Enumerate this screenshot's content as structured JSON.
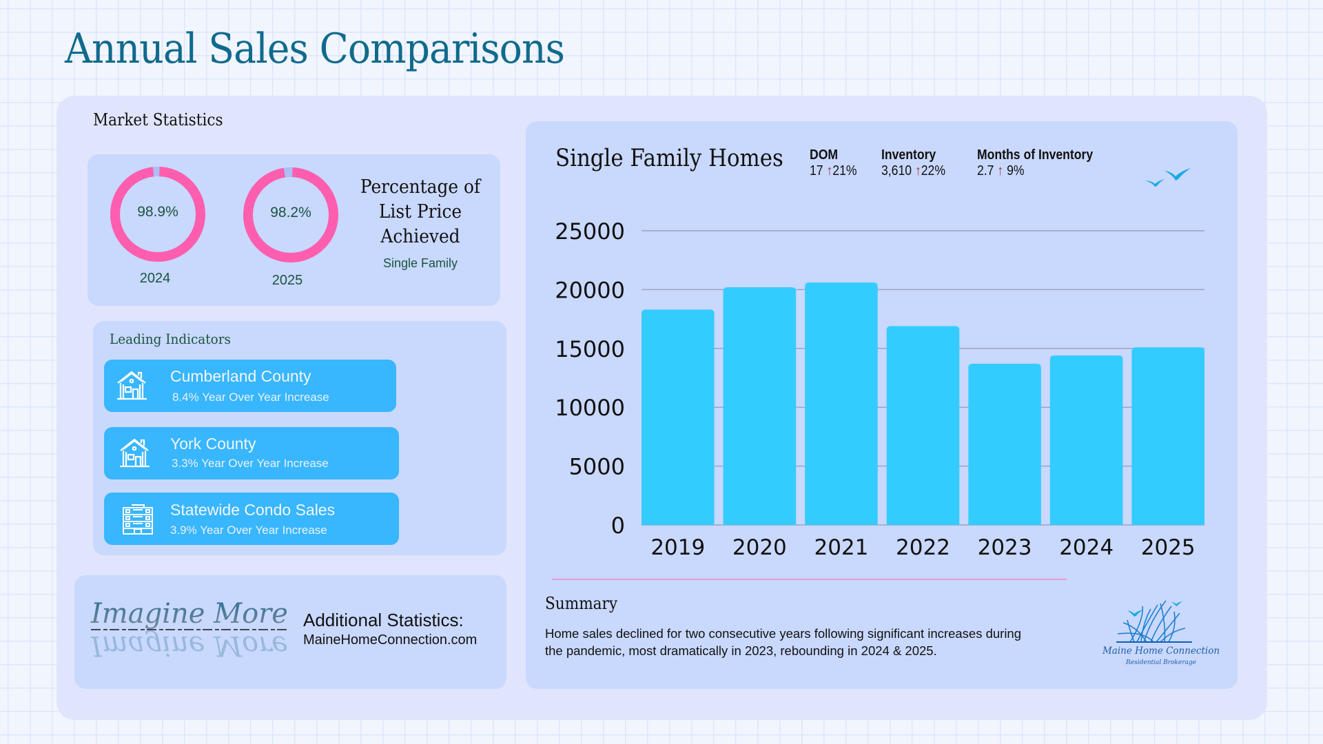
{
  "page": {
    "title": "Annual Sales Comparisons"
  },
  "market_stats": {
    "label": "Market Statistics",
    "donuts": [
      {
        "value_label": "98.9%",
        "value": 98.9,
        "year": "2024"
      },
      {
        "value_label": "98.2%",
        "value": 98.2,
        "year": "2025"
      }
    ],
    "title": "Percentage of List Price Achieved",
    "subtitle": "Single Family",
    "donut_color": "#ff5eae",
    "donut_gap_color": "#a9bff5"
  },
  "leading_indicators": {
    "title": "Leading Indicators",
    "items": [
      {
        "icon": "house-icon",
        "title": "Cumberland County",
        "subtitle": "8.4% Year Over Year Increase"
      },
      {
        "icon": "house-icon",
        "title": "York County",
        "subtitle": "3.3% Year Over Year Increase"
      },
      {
        "icon": "apartment-building-icon",
        "title": "Statewide Condo Sales",
        "subtitle": "3.9% Year Over Year Increase"
      }
    ]
  },
  "additional": {
    "logo_text": "Imagine More",
    "title": "Additional Statistics:",
    "url": "MaineHomeConnection.com"
  },
  "single_family": {
    "title": "Single Family Homes",
    "metrics": [
      {
        "label": "DOM",
        "value": "17",
        "arrow": "↑",
        "change": "21%"
      },
      {
        "label": "Inventory",
        "value": "3,610",
        "arrow": "↑",
        "change": "22%"
      },
      {
        "label": "Months of Inventory",
        "value": "2.7",
        "arrow": "↑",
        "change": "9%"
      }
    ]
  },
  "summary": {
    "title": "Summary",
    "text": "Home sales declined for two consecutive years following significant increases during the pandemic, most dramatically in 2023, rebounding in 2024 & 2025."
  },
  "brand": {
    "name": "Maine Home Connection",
    "tagline": "Residential Brokerage"
  },
  "chart_data": {
    "type": "bar",
    "title": "Single Family Homes",
    "xlabel": "",
    "ylabel": "",
    "categories": [
      "2019",
      "2020",
      "2021",
      "2022",
      "2023",
      "2024",
      "2025"
    ],
    "values": [
      18300,
      20200,
      20600,
      16900,
      13700,
      14400,
      15100
    ],
    "ylim": [
      0,
      25000
    ],
    "yticks": [
      0,
      5000,
      10000,
      15000,
      20000,
      25000
    ],
    "grid": true,
    "legend": "none",
    "bar_color": "#33ccff",
    "grid_color": "#9ba3c4"
  }
}
